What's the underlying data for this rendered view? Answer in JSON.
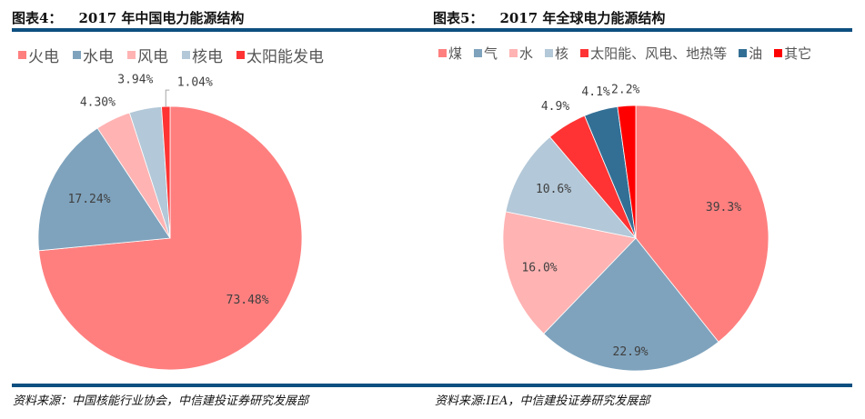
{
  "left": {
    "title_prefix": "图表4：",
    "title_text": "2017 年中国电力能源结构",
    "source": "资料来源：中国核能行业协会，中信建投证券研究发展部"
  },
  "right": {
    "title_prefix": "图表5：",
    "title_text": "2017 年全球电力能源结构",
    "source": "资料来源:IEA，中信建投证券研究发展部"
  },
  "chart_data": [
    {
      "type": "pie",
      "title": "2017 年中国电力能源结构",
      "legend_position": "top-left",
      "start_angle": "12 o'clock, clockwise",
      "categories": [
        "火电",
        "水电",
        "风电",
        "核电",
        "太阳能发电"
      ],
      "values": [
        73.48,
        17.24,
        4.3,
        3.94,
        1.04
      ],
      "labels": [
        "73.48%",
        "17.24%",
        "4.30%",
        "3.94%",
        "1.04%"
      ],
      "label_placement": [
        "inside",
        "inside",
        "outside",
        "outside",
        "outside-leader"
      ],
      "colors": [
        "#ff7f7f",
        "#7fa3bd",
        "#ffb3b3",
        "#b3c8d8",
        "#ff3333"
      ]
    },
    {
      "type": "pie",
      "title": "2017 年全球电力能源结构",
      "legend_position": "top-left",
      "start_angle": "12 o'clock, clockwise",
      "categories": [
        "煤",
        "气",
        "水",
        "核",
        "太阳能、风电、地热等",
        "油",
        "其它"
      ],
      "values": [
        39.3,
        22.9,
        16.0,
        10.6,
        4.9,
        4.1,
        2.2
      ],
      "labels": [
        "39.3%",
        "22.9%",
        "16.0%",
        "10.6%",
        "4.9%",
        "4.1%",
        "2.2%"
      ],
      "label_placement": [
        "inside",
        "inside",
        "inside",
        "inside",
        "outside",
        "outside",
        "outside"
      ],
      "colors": [
        "#ff7f7f",
        "#7fa3bd",
        "#ffb3b3",
        "#b3c8d8",
        "#ff3333",
        "#336f95",
        "#ff0000"
      ]
    }
  ]
}
